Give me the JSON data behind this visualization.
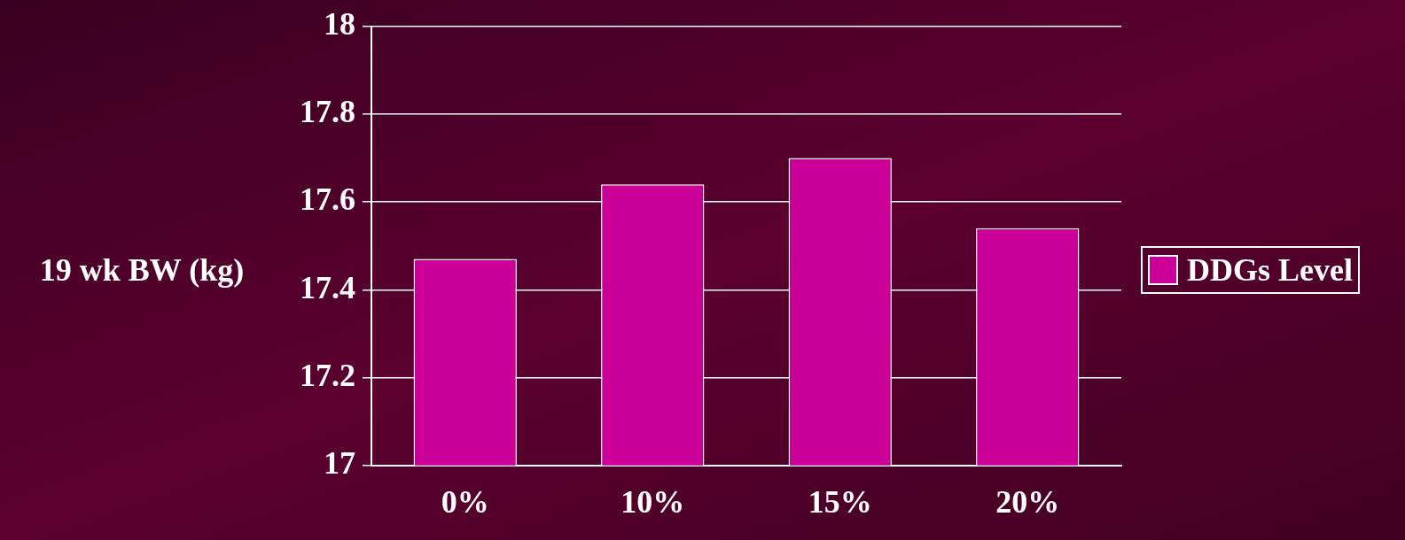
{
  "chart_data": {
    "type": "bar",
    "ylabel": "19 wk BW (kg)",
    "categories": [
      "0%",
      "10%",
      "15%",
      "20%"
    ],
    "series": [
      {
        "name": "DDGs Level",
        "color": "#cc0099",
        "values": [
          17.47,
          17.64,
          17.7,
          17.54
        ]
      }
    ],
    "ylim": [
      17,
      18
    ],
    "yticks": [
      17,
      17.2,
      17.4,
      17.6,
      17.8,
      18
    ],
    "grid": "y",
    "legend": "right"
  }
}
